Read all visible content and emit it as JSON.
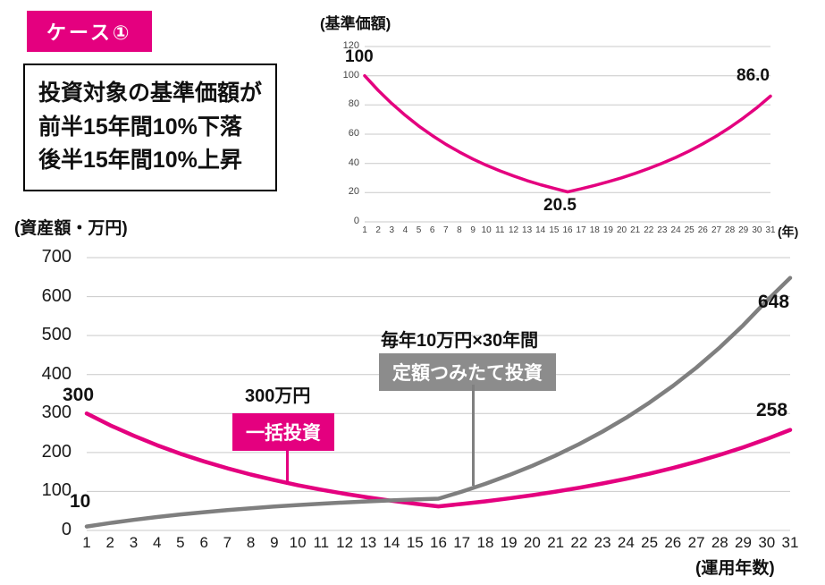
{
  "colors": {
    "magenta": "#e4007f",
    "gray": "#7f7f7f",
    "gray_box": "#8c8c8c",
    "grid": "#c9c9c9"
  },
  "badge": {
    "label": "ケース①"
  },
  "description_box": {
    "lines": [
      "投資対象の基準価額が",
      "前半15年間10%下落",
      "後半15年間10%上昇"
    ]
  },
  "chart_data": [
    {
      "id": "nav",
      "type": "line",
      "title": "(基準価額)",
      "xlabel": "(年)",
      "ylim": [
        0,
        120
      ],
      "yticks": [
        0,
        20,
        40,
        60,
        80,
        100,
        120
      ],
      "grid": true,
      "legend": "none",
      "x": [
        1,
        2,
        3,
        4,
        5,
        6,
        7,
        8,
        9,
        10,
        11,
        12,
        13,
        14,
        15,
        16,
        17,
        18,
        19,
        20,
        21,
        22,
        23,
        24,
        25,
        26,
        27,
        28,
        29,
        30,
        31
      ],
      "series": [
        {
          "name": "基準価額",
          "color": "#e4007f",
          "values": [
            100,
            90,
            81,
            72.9,
            65.6,
            59,
            53.1,
            47.8,
            43,
            38.7,
            34.9,
            31.4,
            28.2,
            25.4,
            22.9,
            20.5,
            22.6,
            24.9,
            27.4,
            30.1,
            33.2,
            36.5,
            40.1,
            44.1,
            48.5,
            53.4,
            58.7,
            64.6,
            71.1,
            78.2,
            86
          ]
        }
      ],
      "annotations": {
        "start": "100",
        "min": "20.5",
        "end": "86.0"
      }
    },
    {
      "id": "asset",
      "type": "line",
      "title": "(資産額・万円)",
      "xlabel": "(運用年数)",
      "ylim": [
        0,
        700
      ],
      "yticks": [
        0,
        100,
        200,
        300,
        400,
        500,
        600,
        700
      ],
      "grid": true,
      "legend": "inline-boxes",
      "x": [
        1,
        2,
        3,
        4,
        5,
        6,
        7,
        8,
        9,
        10,
        11,
        12,
        13,
        14,
        15,
        16,
        17,
        18,
        19,
        20,
        21,
        22,
        23,
        24,
        25,
        26,
        27,
        28,
        29,
        30,
        31
      ],
      "series": [
        {
          "name": "一括投資",
          "label": "一括投資",
          "note": "300万円",
          "color": "#e4007f",
          "values": [
            300,
            270,
            243,
            218.7,
            196.8,
            177.1,
            159.4,
            143.5,
            129.1,
            116.2,
            104.6,
            94.1,
            84.7,
            76.3,
            68.6,
            61.8,
            67.9,
            74.7,
            82.2,
            90.4,
            99.5,
            109.4,
            120.4,
            132.4,
            145.6,
            160.2,
            176.2,
            193.9,
            213.2,
            234.6,
            258
          ]
        },
        {
          "name": "定額つみたて投資",
          "label": "定額つみたて投資",
          "note": "毎年10万円×30年間",
          "color": "#7f7f7f",
          "values": [
            10,
            19,
            27.1,
            34.4,
            41,
            46.9,
            52.2,
            57,
            61.3,
            65.1,
            68.6,
            71.8,
            74.6,
            77.1,
            79.4,
            81.5,
            99.6,
            119.6,
            141.5,
            165.7,
            192.3,
            221.5,
            253.6,
            289,
            327.9,
            370.7,
            417.7,
            469.5,
            526.5,
            589.1,
            648
          ]
        }
      ],
      "annotations": {
        "pink_start": "300",
        "gray_start": "10",
        "gray_end": "648",
        "pink_end": "258"
      }
    }
  ]
}
